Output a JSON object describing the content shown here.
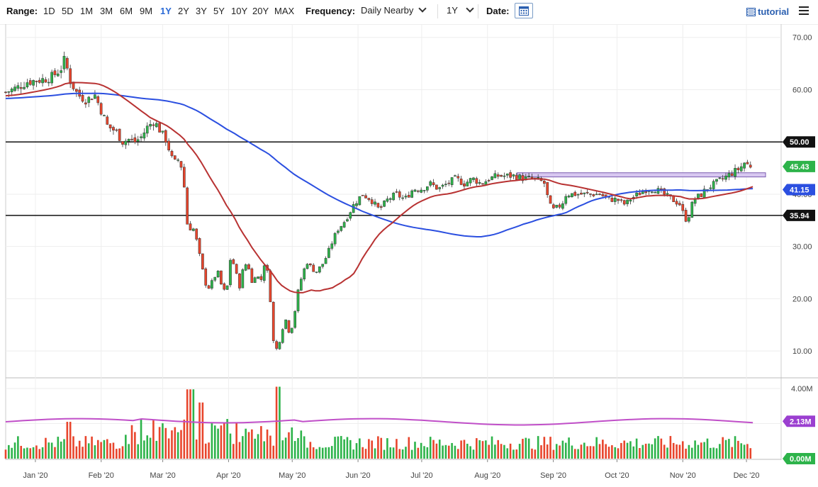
{
  "toolbar": {
    "range_label": "Range:",
    "ranges": [
      "1D",
      "5D",
      "1M",
      "3M",
      "6M",
      "9M",
      "1Y",
      "2Y",
      "3Y",
      "5Y",
      "10Y",
      "20Y",
      "MAX"
    ],
    "active_range": "1Y",
    "frequency_label": "Frequency:",
    "frequency_value": "Daily Nearby",
    "period_value": "1Y",
    "date_label": "Date:",
    "tutorial_label": "tutorial"
  },
  "colors": {
    "up": "#2db34a",
    "down": "#e8452c",
    "ma_blue": "#2b4fe0",
    "ma_red": "#b83232",
    "vol_avg": "#c04fc8",
    "badge_green": "#2db34a",
    "badge_blue": "#2b4fe0",
    "badge_black": "#111111",
    "badge_purple": "#9b3fd0",
    "zone_fill": "#d8c8f0",
    "zone_stroke": "#7a5bb0"
  },
  "chart_data": {
    "type": "candlestick",
    "price_axis": {
      "min": 5,
      "max": 72,
      "ticks": [
        "70.00",
        "60.00",
        "50.00",
        "40.00",
        "30.00",
        "20.00",
        "10.00"
      ]
    },
    "volume_axis": {
      "max": 4.0,
      "ticks": [
        "4.00M",
        "2.00M"
      ]
    },
    "x_months": [
      "Jan '20",
      "Feb '20",
      "Mar '20",
      "Apr '20",
      "May '20",
      "Jun '20",
      "Jul '20",
      "Aug '20",
      "Sep '20",
      "Oct '20",
      "Nov '20",
      "Dec '20"
    ],
    "x_month_days": [
      14,
      45,
      74,
      105,
      135,
      166,
      196,
      227,
      258,
      288,
      319,
      349
    ],
    "horizontal_lines": [
      {
        "value": 50.0,
        "label": "50.00"
      },
      {
        "value": 35.94,
        "label": "35.94"
      }
    ],
    "resistance_zone": {
      "from_day": 241,
      "to_day": 358,
      "low": 43.3,
      "high": 44.1
    },
    "last_price": {
      "value": 45.43,
      "label": "45.43"
    },
    "ma_blue_last": {
      "value": 41.15,
      "label": "41.15"
    },
    "volume_avg_last": {
      "value": 2.13,
      "label": "2.13M"
    },
    "volume_zero_label": "0.00M",
    "close_anchors": [
      [
        0,
        59.5
      ],
      [
        6,
        60.5
      ],
      [
        10,
        61.5
      ],
      [
        18,
        62
      ],
      [
        22,
        62.5
      ],
      [
        26,
        64
      ],
      [
        28,
        66
      ],
      [
        30,
        62
      ],
      [
        34,
        59
      ],
      [
        38,
        58
      ],
      [
        42,
        59
      ],
      [
        45,
        56
      ],
      [
        48,
        53
      ],
      [
        52,
        52
      ],
      [
        55,
        50
      ],
      [
        58,
        50.5
      ],
      [
        61,
        50
      ],
      [
        64,
        51
      ],
      [
        67,
        53
      ],
      [
        70,
        54
      ],
      [
        73,
        52
      ],
      [
        76,
        50
      ],
      [
        78,
        47
      ],
      [
        80,
        46
      ],
      [
        82,
        47
      ],
      [
        84,
        42
      ],
      [
        85,
        36
      ],
      [
        86,
        33
      ],
      [
        88,
        34
      ],
      [
        90,
        31
      ],
      [
        92,
        27
      ],
      [
        94,
        23
      ],
      [
        96,
        22
      ],
      [
        98,
        24
      ],
      [
        100,
        25
      ],
      [
        102,
        22
      ],
      [
        104,
        21
      ],
      [
        106,
        28
      ],
      [
        108,
        26
      ],
      [
        110,
        22
      ],
      [
        112,
        26
      ],
      [
        114,
        27
      ],
      [
        116,
        23
      ],
      [
        118,
        25
      ],
      [
        120,
        23
      ],
      [
        122,
        27
      ],
      [
        124,
        24
      ],
      [
        126,
        12
      ],
      [
        128,
        10
      ],
      [
        130,
        14
      ],
      [
        132,
        16
      ],
      [
        134,
        13
      ],
      [
        136,
        17
      ],
      [
        138,
        22
      ],
      [
        140,
        25
      ],
      [
        142,
        27
      ],
      [
        144,
        26
      ],
      [
        146,
        25
      ],
      [
        148,
        26
      ],
      [
        150,
        27
      ],
      [
        152,
        29
      ],
      [
        156,
        33
      ],
      [
        160,
        35
      ],
      [
        164,
        38
      ],
      [
        168,
        40
      ],
      [
        172,
        39
      ],
      [
        176,
        37
      ],
      [
        180,
        39
      ],
      [
        184,
        40
      ],
      [
        188,
        39
      ],
      [
        192,
        41
      ],
      [
        196,
        41
      ],
      [
        200,
        42
      ],
      [
        204,
        41
      ],
      [
        208,
        42
      ],
      [
        212,
        43
      ],
      [
        216,
        42
      ],
      [
        220,
        43
      ],
      [
        224,
        42
      ],
      [
        228,
        43
      ],
      [
        232,
        43.5
      ],
      [
        236,
        43.5
      ],
      [
        240,
        43.5
      ],
      [
        244,
        43
      ],
      [
        248,
        43
      ],
      [
        252,
        42.5
      ],
      [
        254,
        42
      ],
      [
        256,
        38
      ],
      [
        258,
        37
      ],
      [
        262,
        38
      ],
      [
        264,
        40
      ],
      [
        268,
        40
      ],
      [
        272,
        40
      ],
      [
        276,
        40
      ],
      [
        280,
        40
      ],
      [
        284,
        39
      ],
      [
        288,
        39
      ],
      [
        292,
        38
      ],
      [
        294,
        39
      ],
      [
        298,
        40
      ],
      [
        302,
        41
      ],
      [
        306,
        41
      ],
      [
        310,
        40
      ],
      [
        314,
        39
      ],
      [
        318,
        38
      ],
      [
        320,
        35
      ],
      [
        322,
        36
      ],
      [
        324,
        39
      ],
      [
        328,
        40
      ],
      [
        330,
        41
      ],
      [
        334,
        42
      ],
      [
        338,
        43
      ],
      [
        342,
        44
      ],
      [
        346,
        45
      ],
      [
        348,
        46
      ],
      [
        350,
        45.5
      ],
      [
        352,
        45.43
      ]
    ]
  }
}
